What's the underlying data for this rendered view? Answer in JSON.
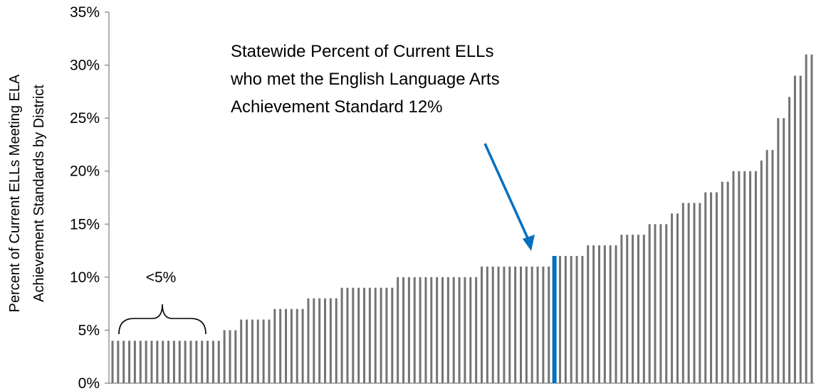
{
  "chart_data": {
    "type": "bar",
    "title": "",
    "xlabel": "",
    "ylabel_lines": [
      "Percent of Current ELLs Meeting ELA",
      "Achievement Standards by District"
    ],
    "ylim": [
      0,
      35
    ],
    "y_ticks": [
      0,
      5,
      10,
      15,
      20,
      25,
      30,
      35
    ],
    "y_tick_labels": [
      "0%",
      "5%",
      "10%",
      "15%",
      "20%",
      "25%",
      "30%",
      "35%"
    ],
    "grid": false,
    "legend": "none",
    "values": [
      4,
      4,
      4,
      4,
      4,
      4,
      4,
      4,
      4,
      4,
      4,
      4,
      4,
      4,
      4,
      4,
      4,
      4,
      4,
      4,
      5,
      5,
      5,
      6,
      6,
      6,
      6,
      6,
      6,
      7,
      7,
      7,
      7,
      7,
      7,
      8,
      8,
      8,
      8,
      8,
      8,
      9,
      9,
      9,
      9,
      9,
      9,
      9,
      9,
      9,
      9,
      10,
      10,
      10,
      10,
      10,
      10,
      10,
      10,
      10,
      10,
      10,
      10,
      10,
      10,
      10,
      11,
      11,
      11,
      11,
      11,
      11,
      11,
      11,
      11,
      11,
      11,
      11,
      11,
      12,
      12,
      12,
      12,
      12,
      12,
      13,
      13,
      13,
      13,
      13,
      13,
      14,
      14,
      14,
      14,
      14,
      15,
      15,
      15,
      15,
      16,
      16,
      17,
      17,
      17,
      17,
      18,
      18,
      18,
      19,
      19,
      20,
      20,
      20,
      20,
      20,
      21,
      22,
      22,
      25,
      25,
      27,
      29,
      29,
      31,
      31
    ],
    "highlight": {
      "value": 12,
      "color": "#0070c0"
    },
    "bar_color": "#737373",
    "annotations": [
      {
        "lines": [
          "Statewide Percent of Current ELLs",
          "who met the English Language Arts",
          "Achievement Standard 12%"
        ]
      }
    ],
    "bracket": {
      "label": "<5%",
      "bar_count": 20
    }
  }
}
